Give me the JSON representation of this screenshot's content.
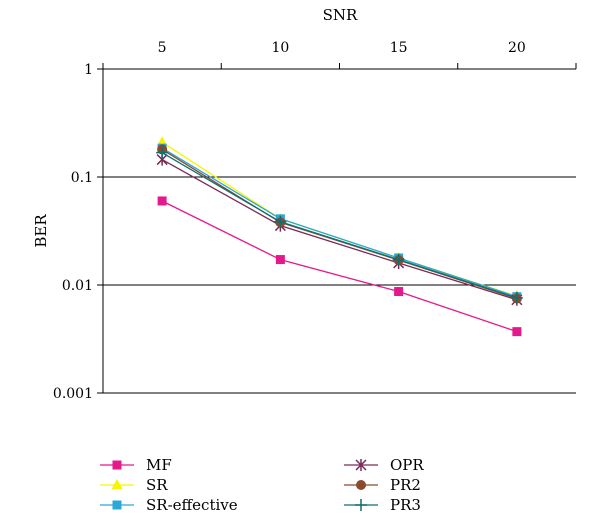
{
  "chart_data": {
    "type": "line",
    "xlabel": "SNR",
    "ylabel": "BER",
    "x": [
      5,
      10,
      15,
      20
    ],
    "x_ticks": [
      "5",
      "10",
      "15",
      "20"
    ],
    "x_axis_position": "top",
    "xlim": [
      2.5,
      22.5
    ],
    "yscale": "log",
    "ylim": [
      0.001,
      1
    ],
    "y_ticks": [
      "1",
      "0.1",
      "0.01",
      "0.001"
    ],
    "y_tick_values": [
      1,
      0.1,
      0.01,
      0.001
    ],
    "grid": "horizontal-major",
    "legend_position": "bottom",
    "series": [
      {
        "name": "MF",
        "color": "#e6198c",
        "marker": "square",
        "values": [
          0.06,
          0.0172,
          0.0087,
          0.0037
        ]
      },
      {
        "name": "SR",
        "color": "#f5f500",
        "marker": "triangle",
        "values": [
          0.21,
          0.041,
          0.0178,
          0.0079
        ]
      },
      {
        "name": "SR-effective",
        "color": "#2aa8d8",
        "marker": "square",
        "values": [
          0.185,
          0.041,
          0.0178,
          0.0078
        ]
      },
      {
        "name": "OPR",
        "color": "#7a2a55",
        "marker": "star",
        "values": [
          0.145,
          0.0355,
          0.016,
          0.0073
        ]
      },
      {
        "name": "PR2",
        "color": "#8b4a2e",
        "marker": "circle",
        "values": [
          0.18,
          0.038,
          0.017,
          0.0075
        ]
      },
      {
        "name": "PR3",
        "color": "#106e70",
        "marker": "plus",
        "values": [
          0.168,
          0.0385,
          0.0172,
          0.0076
        ]
      }
    ]
  }
}
